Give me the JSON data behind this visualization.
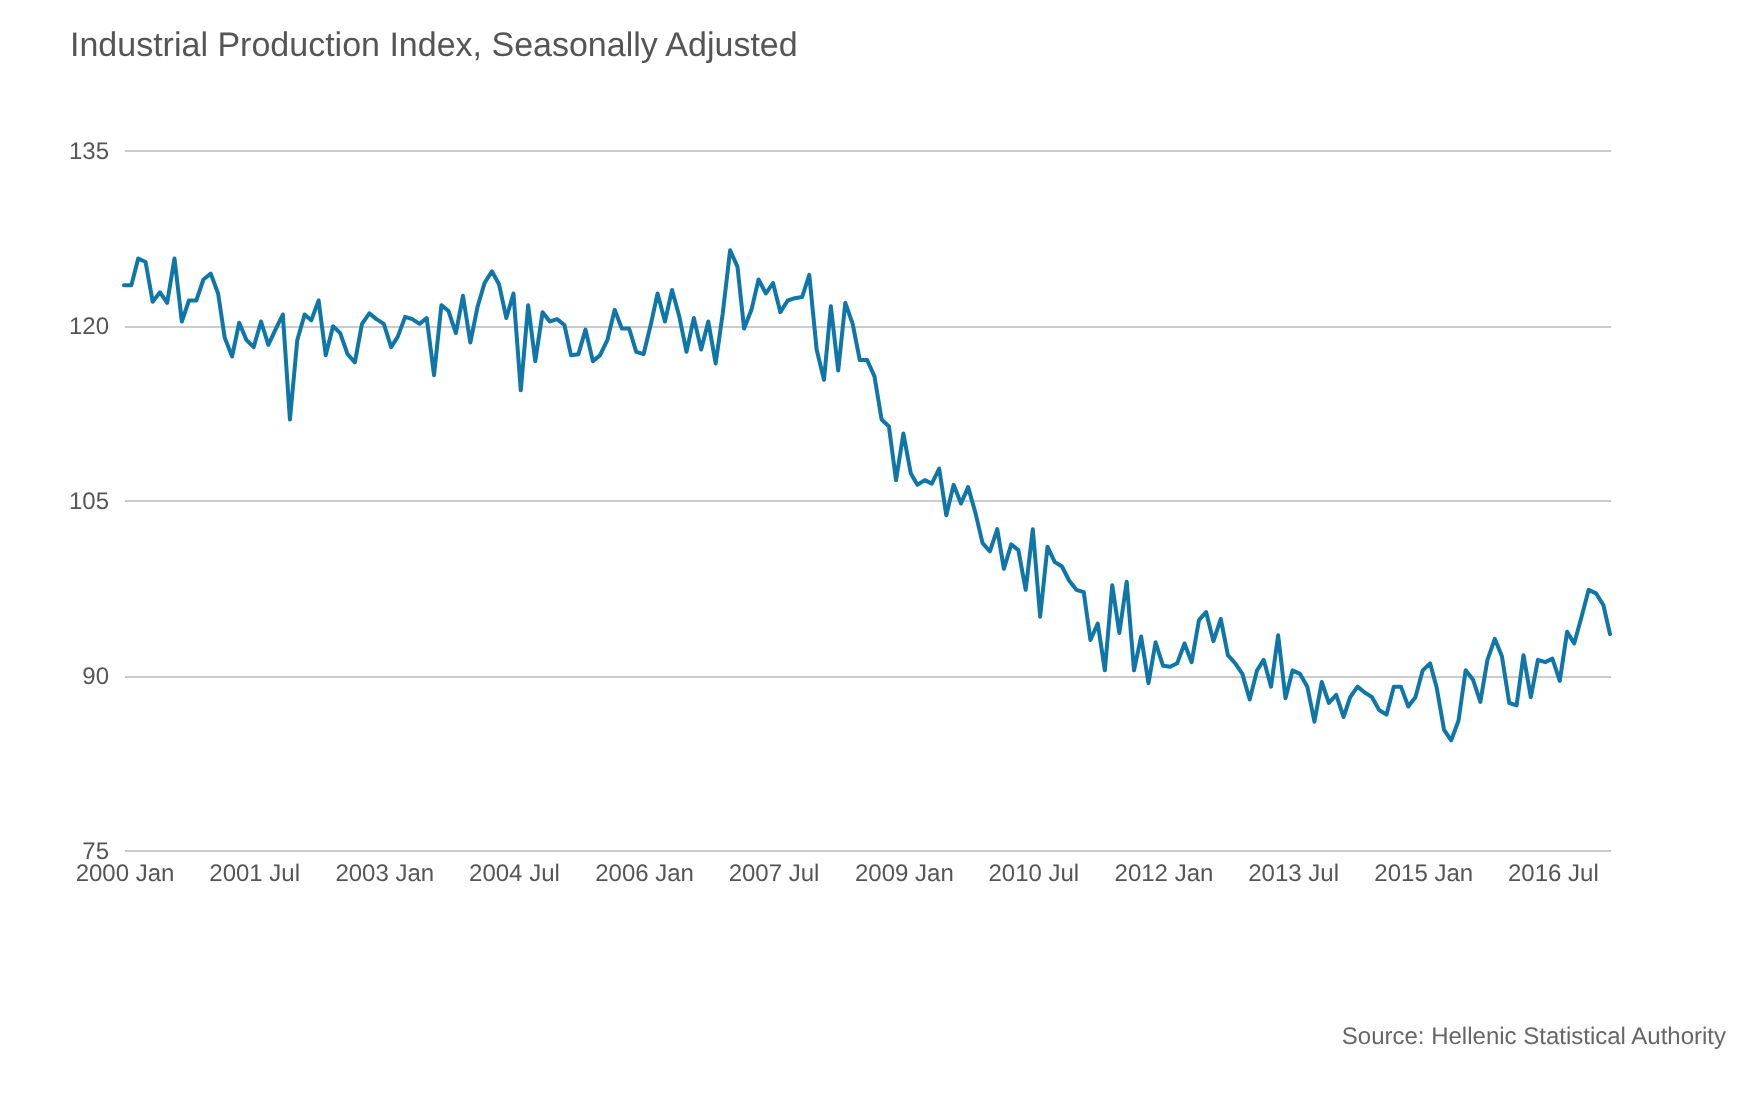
{
  "chart_data": {
    "type": "line",
    "title": "Industrial Production Index, Seasonally Adjusted",
    "annotations": [
      "Source: Hellenic Statistical Authority"
    ],
    "x": [
      "2000-01",
      "2000-02",
      "2000-03",
      "2000-04",
      "2000-05",
      "2000-06",
      "2000-07",
      "2000-08",
      "2000-09",
      "2000-10",
      "2000-11",
      "2000-12",
      "2001-01",
      "2001-02",
      "2001-03",
      "2001-04",
      "2001-05",
      "2001-06",
      "2001-07",
      "2001-08",
      "2001-09",
      "2001-10",
      "2001-11",
      "2001-12",
      "2002-01",
      "2002-02",
      "2002-03",
      "2002-04",
      "2002-05",
      "2002-06",
      "2002-07",
      "2002-08",
      "2002-09",
      "2002-10",
      "2002-11",
      "2002-12",
      "2003-01",
      "2003-02",
      "2003-03",
      "2003-04",
      "2003-05",
      "2003-06",
      "2003-07",
      "2003-08",
      "2003-09",
      "2003-10",
      "2003-11",
      "2003-12",
      "2004-01",
      "2004-02",
      "2004-03",
      "2004-04",
      "2004-05",
      "2004-06",
      "2004-07",
      "2004-08",
      "2004-09",
      "2004-10",
      "2004-11",
      "2004-12",
      "2005-01",
      "2005-02",
      "2005-03",
      "2005-04",
      "2005-05",
      "2005-06",
      "2005-07",
      "2005-08",
      "2005-09",
      "2005-10",
      "2005-11",
      "2005-12",
      "2006-01",
      "2006-02",
      "2006-03",
      "2006-04",
      "2006-05",
      "2006-06",
      "2006-07",
      "2006-08",
      "2006-09",
      "2006-10",
      "2006-11",
      "2006-12",
      "2007-01",
      "2007-02",
      "2007-03",
      "2007-04",
      "2007-05",
      "2007-06",
      "2007-07",
      "2007-08",
      "2007-09",
      "2007-10",
      "2007-11",
      "2007-12",
      "2008-01",
      "2008-02",
      "2008-03",
      "2008-04",
      "2008-05",
      "2008-06",
      "2008-07",
      "2008-08",
      "2008-09",
      "2008-10",
      "2008-11",
      "2008-12",
      "2009-01",
      "2009-02",
      "2009-03",
      "2009-04",
      "2009-05",
      "2009-06",
      "2009-07",
      "2009-08",
      "2009-09",
      "2009-10",
      "2009-11",
      "2009-12",
      "2010-01",
      "2010-02",
      "2010-03",
      "2010-04",
      "2010-05",
      "2010-06",
      "2010-07",
      "2010-08",
      "2010-09",
      "2010-10",
      "2010-11",
      "2010-12",
      "2011-01",
      "2011-02",
      "2011-03",
      "2011-04",
      "2011-05",
      "2011-06",
      "2011-07",
      "2011-08",
      "2011-09",
      "2011-10",
      "2011-11",
      "2011-12",
      "2012-01",
      "2012-02",
      "2012-03",
      "2012-04",
      "2012-05",
      "2012-06",
      "2012-07",
      "2012-08",
      "2012-09",
      "2012-10",
      "2012-11",
      "2012-12",
      "2013-01",
      "2013-02",
      "2013-03",
      "2013-04",
      "2013-05",
      "2013-06",
      "2013-07",
      "2013-08",
      "2013-09",
      "2013-10",
      "2013-11",
      "2013-12",
      "2014-01",
      "2014-02",
      "2014-03",
      "2014-04",
      "2014-05",
      "2014-06",
      "2014-07",
      "2014-08",
      "2014-09",
      "2014-10",
      "2014-11",
      "2014-12",
      "2015-01",
      "2015-02",
      "2015-03",
      "2015-04",
      "2015-05",
      "2015-06",
      "2015-07",
      "2015-08",
      "2015-09",
      "2015-10",
      "2015-11",
      "2015-12",
      "2016-01",
      "2016-02",
      "2016-03",
      "2016-04",
      "2016-05",
      "2016-06",
      "2016-07",
      "2016-08",
      "2016-09",
      "2016-10",
      "2016-11",
      "2016-12",
      "2017-01",
      "2017-02",
      "2017-03"
    ],
    "series": [
      {
        "color": "#0e76a8",
        "values": [
          123.4,
          123.4,
          125.7,
          125.4,
          122,
          122.8,
          121.9,
          125.7,
          120.3,
          122.1,
          122.1,
          123.9,
          124.4,
          122.7,
          118.9,
          117.3,
          120.2,
          118.7,
          118.1,
          120.3,
          118.3,
          119.6,
          120.9,
          111.9,
          118.7,
          120.9,
          120.4,
          122.1,
          117.4,
          119.9,
          119.3,
          117.5,
          116.8,
          120.1,
          121,
          120.5,
          120.1,
          118.1,
          119,
          120.7,
          120.5,
          120.1,
          120.6,
          115.7,
          121.7,
          121.2,
          119.3,
          122.5,
          118.5,
          121.6,
          123.6,
          124.6,
          123.5,
          120.6,
          122.7,
          114.4,
          121.7,
          116.9,
          121.1,
          120.3,
          120.5,
          120,
          117.4,
          117.5,
          119.6,
          116.9,
          117.4,
          118.7,
          121.3,
          119.7,
          119.7,
          117.7,
          117.5,
          120.1,
          122.7,
          120.3,
          123,
          120.7,
          117.7,
          120.6,
          117.9,
          120.3,
          116.7,
          121,
          126.4,
          125,
          119.7,
          121.3,
          123.9,
          122.7,
          123.6,
          121.1,
          122.1,
          122.3,
          122.4,
          124.3,
          117.9,
          115.3,
          121.6,
          116.1,
          121.9,
          120.1,
          117,
          117,
          115.6,
          111.9,
          111.3,
          106.7,
          110.7,
          107.3,
          106.3,
          106.7,
          106.4,
          107.7,
          103.7,
          106.3,
          104.7,
          106.1,
          103.9,
          101.3,
          100.6,
          102.5,
          99.1,
          101.2,
          100.7,
          97.3,
          102.5,
          95,
          101,
          99.7,
          99.3,
          98.1,
          97.3,
          97.1,
          93,
          94.4,
          90.4,
          97.7,
          93.6,
          98,
          90.4,
          93.3,
          89.3,
          92.8,
          90.8,
          90.7,
          91,
          92.7,
          91.1,
          94.7,
          95.4,
          92.9,
          94.8,
          91.7,
          91,
          90.1,
          87.9,
          90.4,
          91.3,
          89,
          93.4,
          88,
          90.4,
          90.1,
          89,
          86,
          89.4,
          87.6,
          88.3,
          86.4,
          88.1,
          89,
          88.5,
          88.1,
          87,
          86.6,
          89,
          89,
          87.3,
          88.1,
          90.4,
          91,
          88.9,
          85.3,
          84.4,
          86.1,
          90.4,
          89.6,
          87.7,
          91.3,
          93.1,
          91.6,
          87.6,
          87.4,
          91.7,
          88.1,
          91.3,
          91.1,
          91.4,
          89.5,
          93.7,
          92.7,
          95,
          97.3,
          97,
          96,
          93.5
        ]
      }
    ],
    "xlim": [
      "2000-01",
      "2017-03"
    ],
    "xticks": [
      {
        "value": "2000-01",
        "label": "2000 Jan"
      },
      {
        "value": "2001-07",
        "label": "2001 Jul"
      },
      {
        "value": "2003-01",
        "label": "2003 Jan"
      },
      {
        "value": "2004-07",
        "label": "2004 Jul"
      },
      {
        "value": "2006-01",
        "label": "2006 Jan"
      },
      {
        "value": "2007-07",
        "label": "2007 Jul"
      },
      {
        "value": "2009-01",
        "label": "2009 Jan"
      },
      {
        "value": "2010-07",
        "label": "2010 Jul"
      },
      {
        "value": "2012-01",
        "label": "2012 Jan"
      },
      {
        "value": "2013-07",
        "label": "2013 Jul"
      },
      {
        "value": "2015-01",
        "label": "2015 Jan"
      },
      {
        "value": "2016-07",
        "label": "2016 Jul"
      }
    ],
    "ylim": [
      75,
      135
    ],
    "yticks": [
      75,
      90,
      105,
      120,
      135
    ],
    "grid": "y",
    "line_style": "solid",
    "marker": "none"
  }
}
